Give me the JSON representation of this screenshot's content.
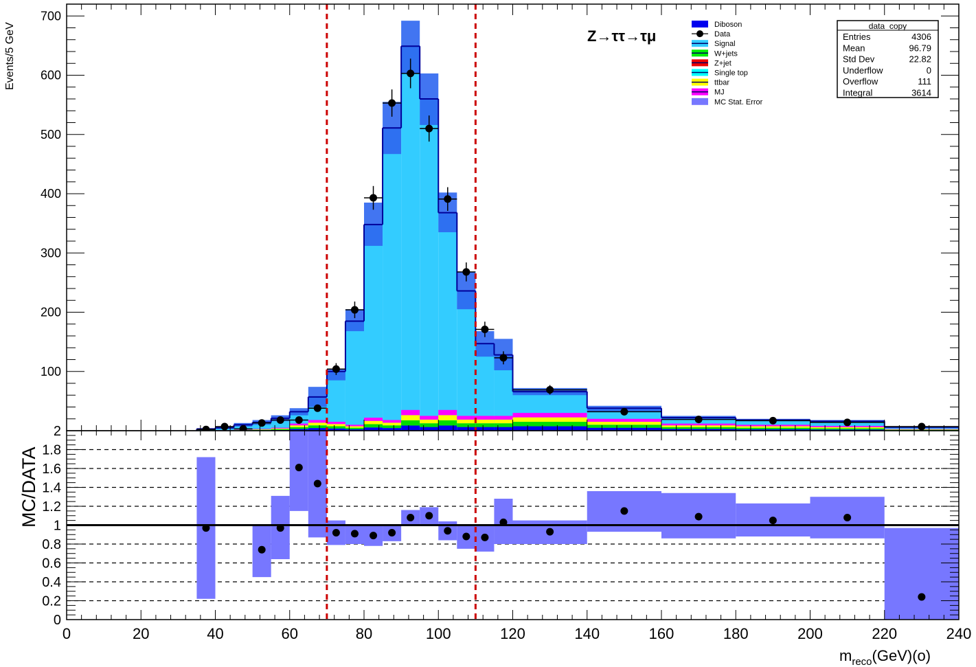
{
  "chart_data": [
    {
      "type": "bar",
      "subtype": "stacked-histogram",
      "title": "Z→ττ→τμ",
      "ylabel": "Events/5 GeV",
      "xlim": [
        0,
        240
      ],
      "ylim": [
        0,
        720
      ],
      "y_ticks": [
        100,
        200,
        300,
        400,
        500,
        600,
        700
      ],
      "vertical_cut_lines": [
        70,
        110
      ],
      "cut_line_color": "#cc0000",
      "legend_position": "top-right",
      "legend": [
        {
          "label": "Diboson",
          "color": "#0000ee",
          "style": "box"
        },
        {
          "label": "Data",
          "color": "#000000",
          "style": "marker"
        },
        {
          "label": "Signal",
          "color": "#33ccff",
          "style": "line-box"
        },
        {
          "label": "W+jets",
          "color": "#00ee00",
          "style": "line-box"
        },
        {
          "label": "Z+jet",
          "color": "#ee0000",
          "style": "line-box"
        },
        {
          "label": "Single top",
          "color": "#00ffff",
          "style": "line-box"
        },
        {
          "label": "ttbar",
          "color": "#ffff00",
          "style": "line-box"
        },
        {
          "label": "MJ",
          "color": "#ff00ff",
          "style": "line-box"
        },
        {
          "label": "MC Stat. Error",
          "color": "#7777ff",
          "style": "box"
        }
      ],
      "stats_box": {
        "title": "data_copy",
        "rows": [
          {
            "label": "Entries",
            "value": "4306"
          },
          {
            "label": "Mean",
            "value": "96.79"
          },
          {
            "label": "Std Dev",
            "value": "22.82"
          },
          {
            "label": "Underflow",
            "value": "0"
          },
          {
            "label": "Overflow",
            "value": "111"
          },
          {
            "label": "Integral",
            "value": "3614"
          }
        ]
      },
      "mc_bins": [
        {
          "lo": 35,
          "hi": 40,
          "total": 3,
          "bkg": 0,
          "err_lo": 1,
          "err_hi": 4
        },
        {
          "lo": 40,
          "hi": 45,
          "total": 5,
          "bkg": 1,
          "err_lo": 3,
          "err_hi": 7
        },
        {
          "lo": 45,
          "hi": 50,
          "total": 10,
          "bkg": 2,
          "err_lo": 7,
          "err_hi": 13
        },
        {
          "lo": 50,
          "hi": 55,
          "total": 14,
          "bkg": 3,
          "err_lo": 10,
          "err_hi": 18
        },
        {
          "lo": 55,
          "hi": 60,
          "total": 21,
          "bkg": 5,
          "err_lo": 16,
          "err_hi": 26
        },
        {
          "lo": 60,
          "hi": 65,
          "total": 32,
          "bkg": 12,
          "err_lo": 26,
          "err_hi": 38
        },
        {
          "lo": 65,
          "hi": 70,
          "total": 57,
          "bkg": 18,
          "err_lo": 40,
          "err_hi": 74
        },
        {
          "lo": 70,
          "hi": 75,
          "total": 100,
          "bkg": 15,
          "err_lo": 85,
          "err_hi": 104
        },
        {
          "lo": 75,
          "hi": 80,
          "total": 185,
          "bkg": 10,
          "err_lo": 168,
          "err_hi": 205
        },
        {
          "lo": 80,
          "hi": 85,
          "total": 348,
          "bkg": 22,
          "err_lo": 312,
          "err_hi": 385
        },
        {
          "lo": 85,
          "hi": 90,
          "total": 511,
          "bkg": 18,
          "err_lo": 467,
          "err_hi": 555
        },
        {
          "lo": 90,
          "hi": 95,
          "total": 649,
          "bkg": 35,
          "err_lo": 603,
          "err_hi": 692
        },
        {
          "lo": 95,
          "hi": 100,
          "total": 560,
          "bkg": 25,
          "err_lo": 516,
          "err_hi": 603
        },
        {
          "lo": 100,
          "hi": 105,
          "total": 368,
          "bkg": 35,
          "err_lo": 335,
          "err_hi": 402
        },
        {
          "lo": 105,
          "hi": 110,
          "total": 236,
          "bkg": 25,
          "err_lo": 205,
          "err_hi": 268
        },
        {
          "lo": 110,
          "hi": 115,
          "total": 147,
          "bkg": 25,
          "err_lo": 125,
          "err_hi": 168
        },
        {
          "lo": 115,
          "hi": 120,
          "total": 128,
          "bkg": 25,
          "err_lo": 102,
          "err_hi": 155
        },
        {
          "lo": 120,
          "hi": 140,
          "total": 66,
          "bkg": 30,
          "err_lo": 60,
          "err_hi": 72
        },
        {
          "lo": 140,
          "hi": 160,
          "total": 38,
          "bkg": 20,
          "err_lo": 32,
          "err_hi": 42
        },
        {
          "lo": 160,
          "hi": 180,
          "total": 22,
          "bkg": 12,
          "err_lo": 20,
          "err_hi": 25
        },
        {
          "lo": 180,
          "hi": 200,
          "total": 18,
          "bkg": 10,
          "err_lo": 16,
          "err_hi": 20
        },
        {
          "lo": 200,
          "hi": 220,
          "total": 16,
          "bkg": 8,
          "err_lo": 14,
          "err_hi": 18
        },
        {
          "lo": 220,
          "hi": 240,
          "total": 6,
          "bkg": 3,
          "err_lo": 5,
          "err_hi": 7
        }
      ],
      "data_points": [
        {
          "x": 37.5,
          "y": 2,
          "err": 2
        },
        {
          "x": 42.5,
          "y": 7,
          "err": 3
        },
        {
          "x": 47.5,
          "y": 3,
          "err": 2
        },
        {
          "x": 52.5,
          "y": 13,
          "err": 4
        },
        {
          "x": 57.5,
          "y": 18,
          "err": 4
        },
        {
          "x": 62.5,
          "y": 18,
          "err": 4
        },
        {
          "x": 67.5,
          "y": 38,
          "err": 6
        },
        {
          "x": 72.5,
          "y": 104,
          "err": 10
        },
        {
          "x": 77.5,
          "y": 204,
          "err": 14
        },
        {
          "x": 82.5,
          "y": 393,
          "err": 20
        },
        {
          "x": 87.5,
          "y": 553,
          "err": 23
        },
        {
          "x": 92.5,
          "y": 603,
          "err": 25
        },
        {
          "x": 97.5,
          "y": 510,
          "err": 22
        },
        {
          "x": 102.5,
          "y": 391,
          "err": 20
        },
        {
          "x": 107.5,
          "y": 268,
          "err": 16
        },
        {
          "x": 112.5,
          "y": 171,
          "err": 13
        },
        {
          "x": 117.5,
          "y": 123,
          "err": 11
        },
        {
          "x": 130,
          "y": 69,
          "err": 8
        },
        {
          "x": 150,
          "y": 32,
          "err": 6
        },
        {
          "x": 170,
          "y": 19,
          "err": 4
        },
        {
          "x": 190,
          "y": 17,
          "err": 4
        },
        {
          "x": 210,
          "y": 14,
          "err": 4
        },
        {
          "x": 230,
          "y": 7,
          "err": 3
        }
      ]
    },
    {
      "type": "scatter",
      "subtype": "ratio",
      "xlabel_main": "m",
      "xlabel_sub": "reco",
      "xlabel_rest": "(GeV)(o)",
      "ylabel": "MC/DATA",
      "xlim": [
        0,
        240
      ],
      "ylim": [
        0,
        2
      ],
      "x_ticks": [
        0,
        20,
        40,
        60,
        80,
        100,
        120,
        140,
        160,
        180,
        200,
        220,
        240
      ],
      "y_ticks": [
        "0",
        "0.2",
        "0.4",
        "0.6",
        "0.8",
        "1",
        "1.2",
        "1.4",
        "1.6",
        "1.8",
        "2"
      ],
      "dashed_grid_values": [
        0.2,
        0.4,
        0.6,
        0.8,
        1.2,
        1.4,
        1.6,
        1.8
      ],
      "reference_line": 1,
      "error_bands": [
        {
          "lo": 35,
          "hi": 40,
          "y0": 0.22,
          "y1": 1.72
        },
        {
          "lo": 50,
          "hi": 55,
          "y0": 0.45,
          "y1": 1.0
        },
        {
          "lo": 55,
          "hi": 60,
          "y0": 0.64,
          "y1": 1.31
        },
        {
          "lo": 60,
          "hi": 65,
          "y0": 1.15,
          "y1": 2.0
        },
        {
          "lo": 65,
          "hi": 70,
          "y0": 0.87,
          "y1": 2.0
        },
        {
          "lo": 70,
          "hi": 75,
          "y0": 0.79,
          "y1": 1.05
        },
        {
          "lo": 75,
          "hi": 80,
          "y0": 0.8,
          "y1": 1.0
        },
        {
          "lo": 80,
          "hi": 85,
          "y0": 0.78,
          "y1": 1.0
        },
        {
          "lo": 85,
          "hi": 90,
          "y0": 0.83,
          "y1": 1.0
        },
        {
          "lo": 90,
          "hi": 95,
          "y0": 1.0,
          "y1": 1.16
        },
        {
          "lo": 95,
          "hi": 100,
          "y0": 1.0,
          "y1": 1.19
        },
        {
          "lo": 100,
          "hi": 105,
          "y0": 0.84,
          "y1": 1.04
        },
        {
          "lo": 105,
          "hi": 110,
          "y0": 0.75,
          "y1": 1.0
        },
        {
          "lo": 110,
          "hi": 115,
          "y0": 0.72,
          "y1": 1.0
        },
        {
          "lo": 115,
          "hi": 120,
          "y0": 0.8,
          "y1": 1.28
        },
        {
          "lo": 120,
          "hi": 140,
          "y0": 0.8,
          "y1": 1.05
        },
        {
          "lo": 140,
          "hi": 160,
          "y0": 0.93,
          "y1": 1.36
        },
        {
          "lo": 160,
          "hi": 180,
          "y0": 0.86,
          "y1": 1.34
        },
        {
          "lo": 180,
          "hi": 200,
          "y0": 0.88,
          "y1": 1.23
        },
        {
          "lo": 200,
          "hi": 220,
          "y0": 0.86,
          "y1": 1.3
        },
        {
          "lo": 220,
          "hi": 240,
          "y0": 0.0,
          "y1": 0.97
        }
      ],
      "points": [
        {
          "x": 37.5,
          "y": 0.97
        },
        {
          "x": 52.5,
          "y": 0.74
        },
        {
          "x": 57.5,
          "y": 0.97
        },
        {
          "x": 62.5,
          "y": 1.61
        },
        {
          "x": 67.5,
          "y": 1.44
        },
        {
          "x": 72.5,
          "y": 0.92
        },
        {
          "x": 77.5,
          "y": 0.91
        },
        {
          "x": 82.5,
          "y": 0.89
        },
        {
          "x": 87.5,
          "y": 0.92
        },
        {
          "x": 92.5,
          "y": 1.08
        },
        {
          "x": 97.5,
          "y": 1.1
        },
        {
          "x": 102.5,
          "y": 0.94
        },
        {
          "x": 107.5,
          "y": 0.88
        },
        {
          "x": 112.5,
          "y": 0.87
        },
        {
          "x": 117.5,
          "y": 1.03
        },
        {
          "x": 130,
          "y": 0.93
        },
        {
          "x": 150,
          "y": 1.15
        },
        {
          "x": 170,
          "y": 1.09
        },
        {
          "x": 190,
          "y": 1.05
        },
        {
          "x": 210,
          "y": 1.08
        },
        {
          "x": 230,
          "y": 0.24
        }
      ]
    }
  ],
  "colors": {
    "signal_fill": "#33ccff",
    "signal_outline": "#000099",
    "stat_error_fill": "#7777ff",
    "diboson_top": "#2e66f0"
  }
}
